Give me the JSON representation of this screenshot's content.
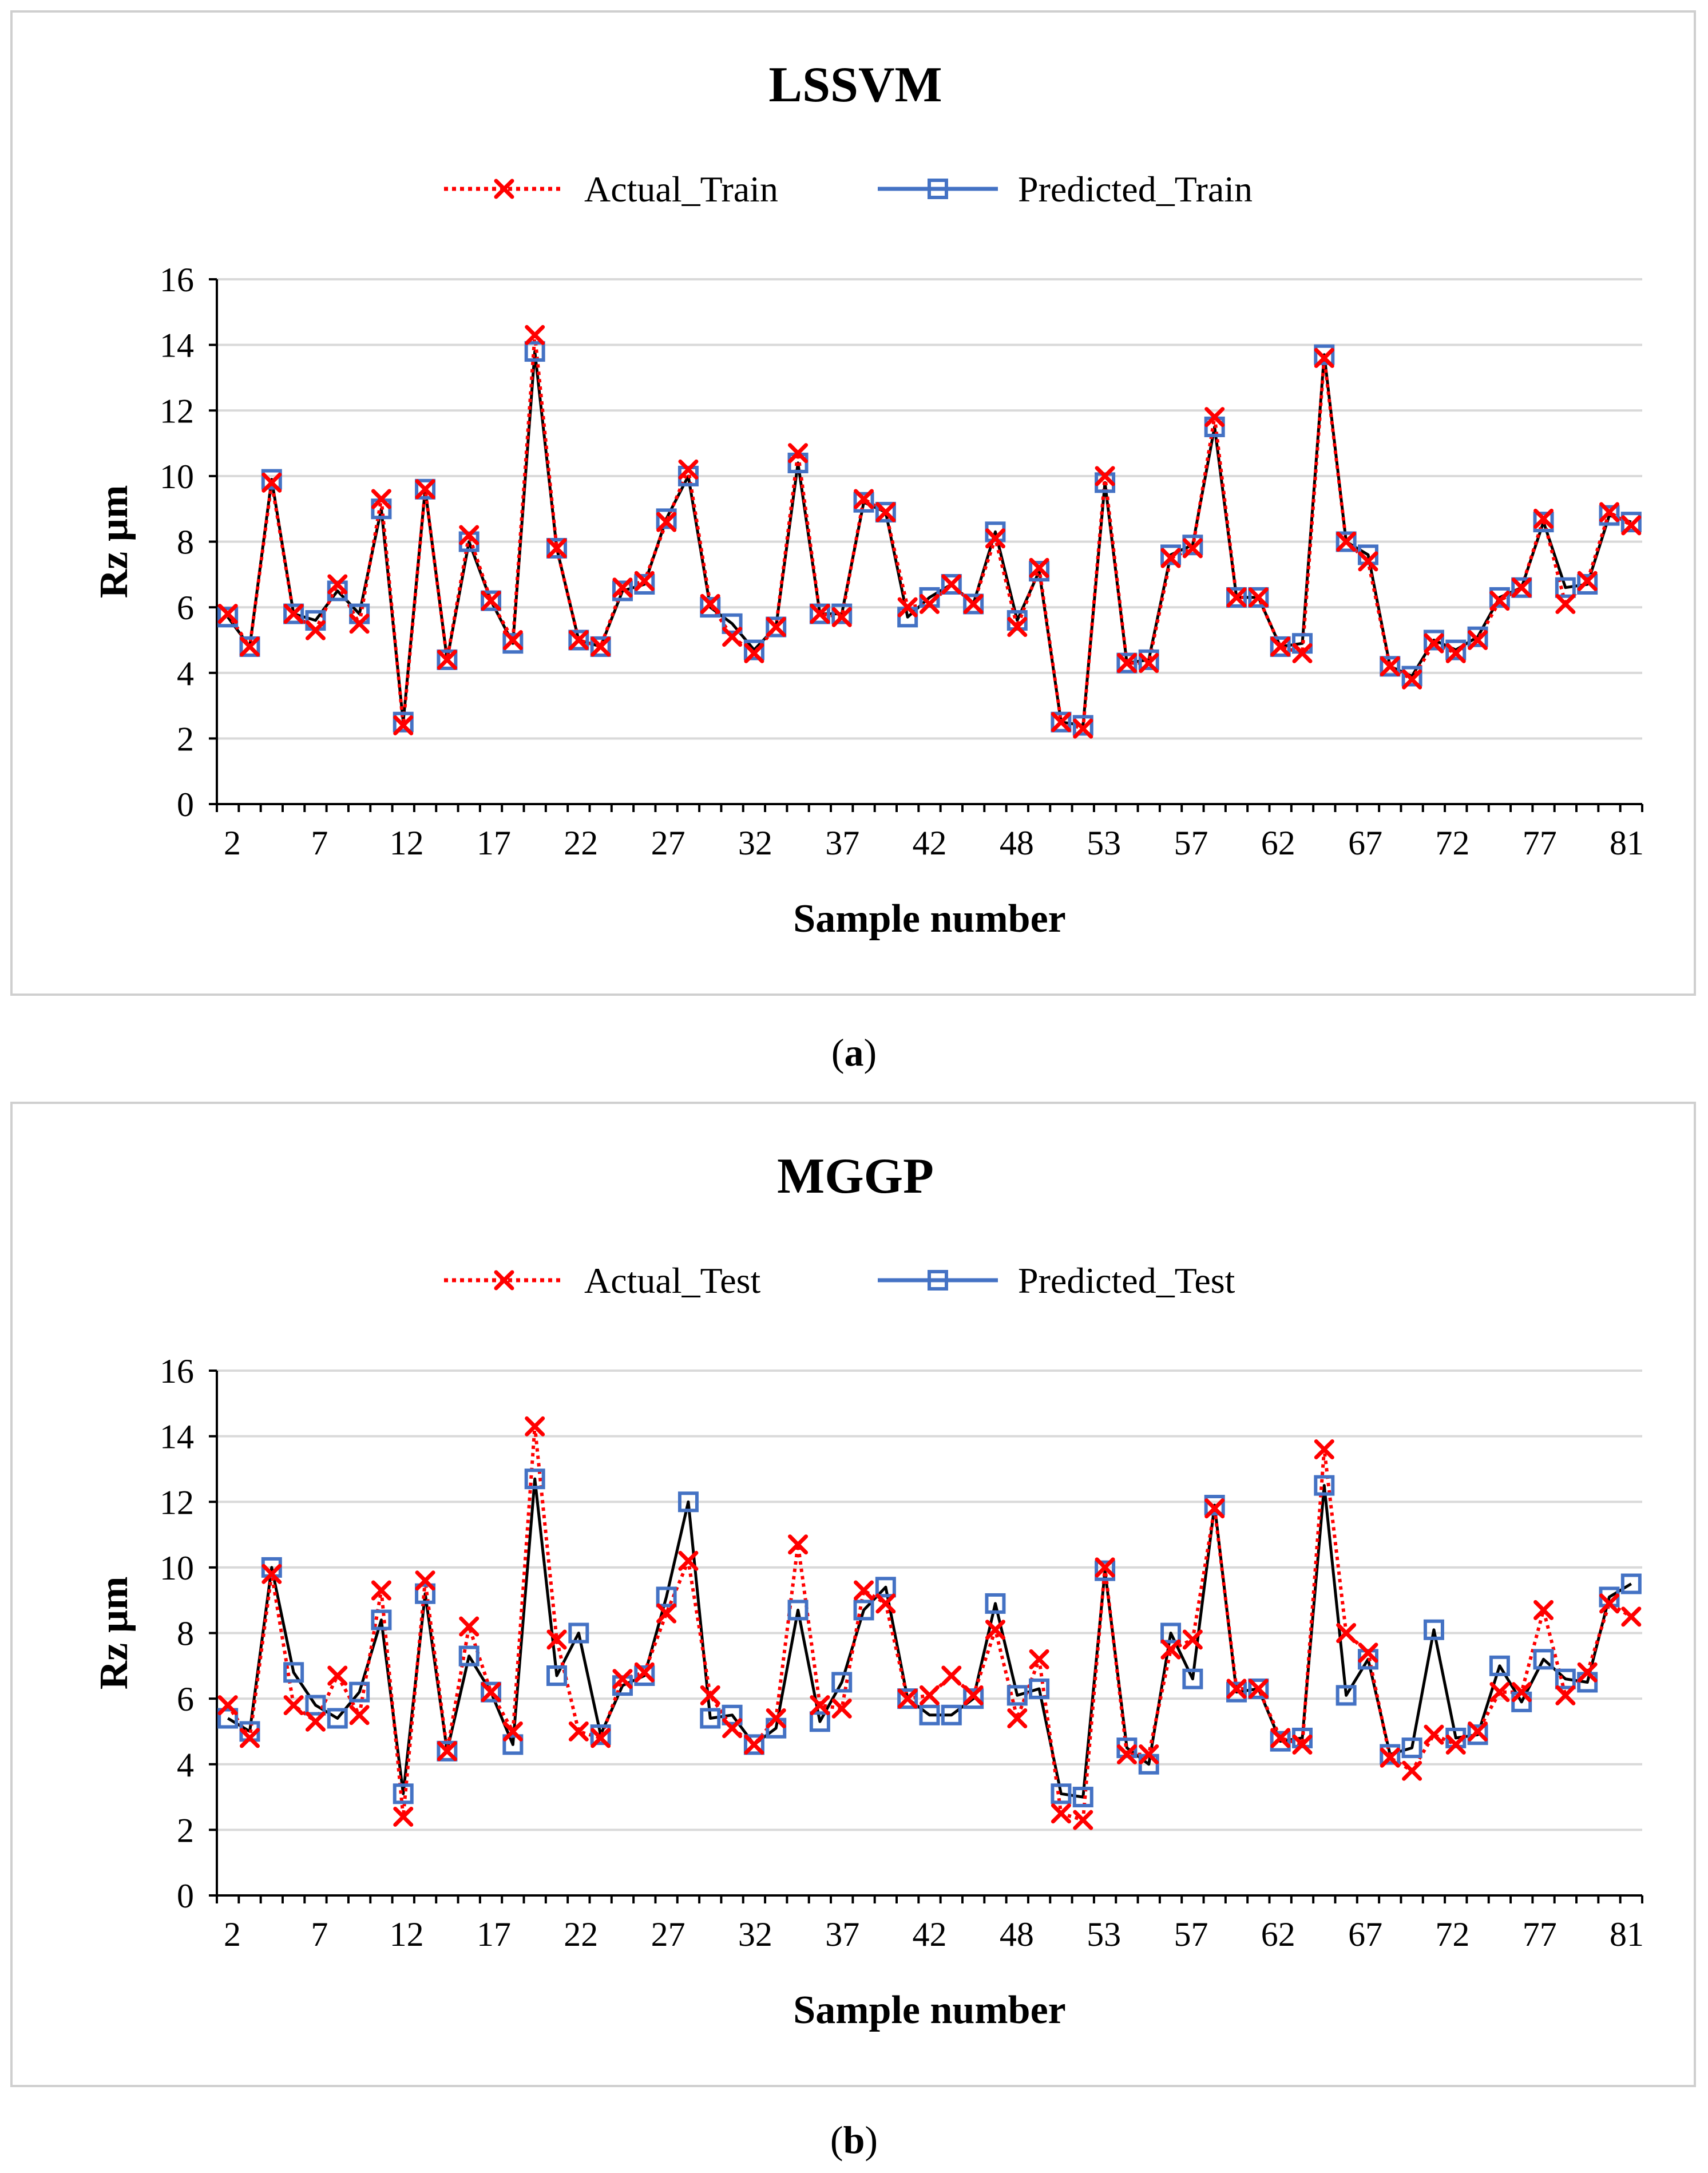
{
  "chart_data": [
    {
      "type": "line",
      "title": "LSSVM",
      "xlabel": "Sample number",
      "ylabel": "Rz µm",
      "ylim": [
        0,
        16
      ],
      "yticks": [
        0,
        2,
        4,
        6,
        8,
        10,
        12,
        14,
        16
      ],
      "xtick_labels": [
        "2",
        "7",
        "12",
        "17",
        "22",
        "27",
        "32",
        "37",
        "42",
        "48",
        "53",
        "57",
        "62",
        "67",
        "72",
        "77",
        "81"
      ],
      "grid": "horizontal",
      "legend": "top-center",
      "series": [
        {
          "name": "Actual_Train",
          "color": "#ff0000",
          "style": "dotted",
          "marker": "x",
          "values": [
            5.8,
            4.8,
            9.8,
            5.8,
            5.3,
            6.7,
            5.5,
            9.3,
            2.4,
            9.6,
            4.4,
            8.2,
            6.2,
            5.0,
            14.3,
            7.8,
            5.0,
            4.8,
            6.6,
            6.8,
            8.6,
            10.2,
            6.1,
            5.1,
            4.6,
            5.4,
            10.7,
            5.8,
            5.7,
            9.3,
            8.9,
            6.0,
            6.1,
            6.7,
            6.1,
            8.1,
            5.4,
            7.2,
            2.5,
            2.3,
            10.0,
            4.3,
            4.3,
            7.5,
            7.8,
            11.8,
            6.3,
            6.3,
            4.8,
            4.6,
            13.6,
            8.0,
            7.4,
            4.2,
            3.8,
            4.9,
            4.6,
            5.0,
            6.2,
            6.6,
            8.7,
            6.1,
            6.8,
            8.9,
            8.5
          ]
        },
        {
          "name": "Predicted_Train",
          "color": "#4472c4",
          "style": "solid",
          "marker": "square",
          "values": [
            5.7,
            4.8,
            9.9,
            5.8,
            5.6,
            6.5,
            5.8,
            9.0,
            2.5,
            9.6,
            4.4,
            8.0,
            6.2,
            4.9,
            13.8,
            7.8,
            5.0,
            4.8,
            6.5,
            6.7,
            8.7,
            10.0,
            6.0,
            5.5,
            4.7,
            5.4,
            10.4,
            5.8,
            5.8,
            9.2,
            8.9,
            5.7,
            6.3,
            6.7,
            6.1,
            8.3,
            5.6,
            7.1,
            2.5,
            2.4,
            9.8,
            4.3,
            4.4,
            7.6,
            7.9,
            11.5,
            6.3,
            6.3,
            4.8,
            4.9,
            13.7,
            8.0,
            7.6,
            4.2,
            3.9,
            5.0,
            4.7,
            5.1,
            6.3,
            6.6,
            8.6,
            6.6,
            6.7,
            8.8,
            8.6
          ]
        }
      ]
    },
    {
      "type": "line",
      "title": "MGGP",
      "xlabel": "Sample number",
      "ylabel": "Rz µm",
      "ylim": [
        0,
        16
      ],
      "yticks": [
        0,
        2,
        4,
        6,
        8,
        10,
        12,
        14,
        16
      ],
      "xtick_labels": [
        "2",
        "7",
        "12",
        "17",
        "22",
        "27",
        "32",
        "37",
        "42",
        "48",
        "53",
        "57",
        "62",
        "67",
        "72",
        "77",
        "81"
      ],
      "grid": "horizontal",
      "legend": "top-center",
      "series": [
        {
          "name": "Actual_Test",
          "color": "#ff0000",
          "style": "dotted",
          "marker": "x",
          "values": [
            5.8,
            4.8,
            9.8,
            5.8,
            5.3,
            6.7,
            5.5,
            9.3,
            2.4,
            9.6,
            4.4,
            8.2,
            6.2,
            5.0,
            14.3,
            7.8,
            5.0,
            4.8,
            6.6,
            6.8,
            8.6,
            10.2,
            6.1,
            5.1,
            4.6,
            5.4,
            10.7,
            5.8,
            5.7,
            9.3,
            8.9,
            6.0,
            6.1,
            6.7,
            6.1,
            8.1,
            5.4,
            7.2,
            2.5,
            2.3,
            10.0,
            4.3,
            4.3,
            7.5,
            7.8,
            11.8,
            6.3,
            6.3,
            4.8,
            4.6,
            13.6,
            8.0,
            7.4,
            4.2,
            3.8,
            4.9,
            4.6,
            5.0,
            6.2,
            6.2,
            8.7,
            6.1,
            6.8,
            8.9,
            8.5
          ]
        },
        {
          "name": "Predicted_Test",
          "color": "#4472c4",
          "style": "solid",
          "marker": "square",
          "values": [
            5.4,
            5.0,
            10.0,
            6.8,
            5.8,
            5.4,
            6.2,
            8.4,
            3.1,
            9.2,
            4.4,
            7.3,
            6.2,
            4.6,
            12.7,
            6.7,
            8.0,
            4.9,
            6.4,
            6.7,
            9.1,
            12.0,
            5.4,
            5.5,
            4.6,
            5.1,
            8.7,
            5.3,
            6.5,
            8.7,
            9.4,
            6.0,
            5.5,
            5.5,
            6.0,
            8.9,
            6.1,
            6.3,
            3.1,
            3.0,
            9.9,
            4.5,
            4.0,
            8.0,
            6.6,
            11.9,
            6.2,
            6.3,
            4.7,
            4.8,
            12.5,
            6.1,
            7.2,
            4.3,
            4.5,
            8.1,
            4.8,
            4.9,
            7.0,
            5.9,
            7.2,
            6.6,
            6.5,
            9.1,
            9.5
          ]
        }
      ]
    }
  ],
  "captions": [
    "(a)",
    "(b)"
  ]
}
